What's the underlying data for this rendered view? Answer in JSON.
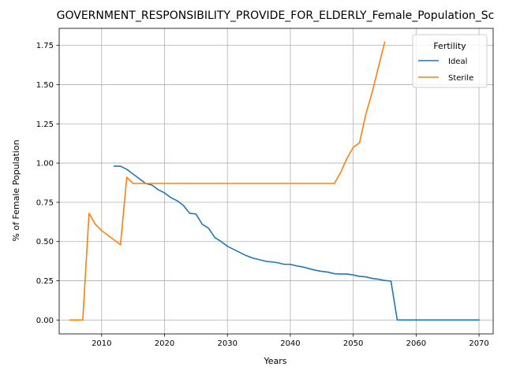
{
  "chart_data": {
    "type": "line",
    "title": "GOVERNMENT_RESPONSIBILITY_PROVIDE_FOR_ELDERLY_Female_Population_Sc",
    "xlabel": "Years",
    "ylabel": "% of Female Population",
    "xlim": [
      2003.25,
      2072.25
    ],
    "ylim": [
      -0.0885,
      1.8585
    ],
    "xticks": [
      2010,
      2020,
      2030,
      2040,
      2050,
      2060,
      2070
    ],
    "yticks": [
      0.0,
      0.25,
      0.5,
      0.75,
      1.0,
      1.25,
      1.5,
      1.75
    ],
    "xtick_labels": [
      "2010",
      "2020",
      "2030",
      "2040",
      "2050",
      "2060",
      "2070"
    ],
    "ytick_labels": [
      "0.00",
      "0.25",
      "0.50",
      "0.75",
      "1.00",
      "1.25",
      "1.50",
      "1.75"
    ],
    "grid": true,
    "legend": {
      "title": "Fertility",
      "position": "top-right"
    },
    "series": [
      {
        "name": "Ideal",
        "color": "#1f77b4",
        "x": [
          2012,
          2013,
          2014,
          2015,
          2016,
          2017,
          2018,
          2019,
          2020,
          2021,
          2022,
          2023,
          2024,
          2025,
          2026,
          2027,
          2028,
          2029,
          2030,
          2031,
          2032,
          2033,
          2034,
          2035,
          2036,
          2037,
          2038,
          2039,
          2040,
          2041,
          2042,
          2043,
          2044,
          2045,
          2046,
          2047,
          2048,
          2049,
          2050,
          2051,
          2052,
          2053,
          2054,
          2055,
          2056,
          2057,
          2058,
          2059,
          2060,
          2061,
          2062,
          2063,
          2064,
          2065,
          2066,
          2067,
          2068,
          2069,
          2070
        ],
        "y": [
          0.98,
          0.98,
          0.96,
          0.93,
          0.9,
          0.87,
          0.86,
          0.83,
          0.81,
          0.78,
          0.76,
          0.73,
          0.68,
          0.675,
          0.61,
          0.585,
          0.525,
          0.5,
          0.47,
          0.45,
          0.43,
          0.41,
          0.395,
          0.385,
          0.375,
          0.37,
          0.365,
          0.355,
          0.355,
          0.345,
          0.338,
          0.327,
          0.317,
          0.31,
          0.305,
          0.295,
          0.293,
          0.293,
          0.287,
          0.278,
          0.275,
          0.265,
          0.26,
          0.252,
          0.248,
          0.0,
          0.0,
          0.0,
          0.0,
          0.0,
          0.0,
          0.0,
          0.0,
          0.0,
          0.0,
          0.0,
          0.0,
          0.0,
          0.0
        ]
      },
      {
        "name": "Sterile",
        "color": "#ff7f0e",
        "x": [
          2005,
          2006,
          2007,
          2008,
          2009,
          2010,
          2011,
          2012,
          2013,
          2014,
          2015,
          2016,
          2017,
          2018,
          2019,
          2020,
          2021,
          2022,
          2023,
          2024,
          2025,
          2026,
          2027,
          2028,
          2029,
          2030,
          2031,
          2032,
          2033,
          2034,
          2035,
          2036,
          2037,
          2038,
          2039,
          2040,
          2041,
          2042,
          2043,
          2044,
          2045,
          2046,
          2047,
          2048,
          2049,
          2050,
          2051,
          2052,
          2053,
          2054,
          2055
        ],
        "y": [
          0.0,
          0.0,
          0.0,
          0.68,
          0.61,
          0.57,
          0.54,
          0.51,
          0.48,
          0.91,
          0.87,
          0.87,
          0.87,
          0.87,
          0.87,
          0.87,
          0.87,
          0.87,
          0.87,
          0.87,
          0.87,
          0.87,
          0.87,
          0.87,
          0.87,
          0.87,
          0.87,
          0.87,
          0.87,
          0.87,
          0.87,
          0.87,
          0.87,
          0.87,
          0.87,
          0.87,
          0.87,
          0.87,
          0.87,
          0.87,
          0.87,
          0.87,
          0.87,
          0.94,
          1.03,
          1.1,
          1.13,
          1.31,
          1.45,
          1.61,
          1.77
        ]
      }
    ]
  }
}
